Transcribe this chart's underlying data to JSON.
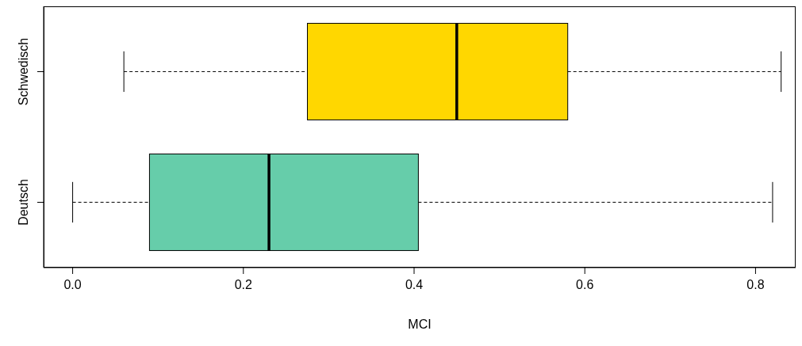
{
  "chart_data": {
    "type": "box",
    "orientation": "horizontal",
    "categories": [
      "Schwedisch",
      "Deutsch"
    ],
    "boxes": [
      {
        "low": 0.06,
        "q1": 0.275,
        "median": 0.45,
        "q3": 0.58,
        "high": 0.83
      },
      {
        "low": 0,
        "q1": 0.09,
        "median": 0.23,
        "q3": 0.405,
        "high": 0.82
      }
    ],
    "colors": [
      "#ffd700",
      "#66cdaa"
    ],
    "xlabel": "MCI",
    "xlim": [
      -0.034,
      0.847
    ],
    "xticks": [
      {
        "value": 0,
        "label": "0.0"
      },
      {
        "value": 0.2,
        "label": "0.2"
      },
      {
        "value": 0.4,
        "label": "0.4"
      },
      {
        "value": 0.6,
        "label": "0.6"
      },
      {
        "value": 0.8,
        "label": "0.8"
      }
    ]
  }
}
